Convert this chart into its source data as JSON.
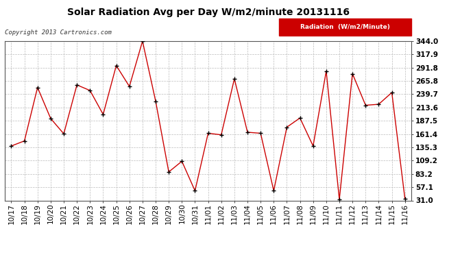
{
  "title": "Solar Radiation Avg per Day W/m2/minute 20131116",
  "copyright": "Copyright 2013 Cartronics.com",
  "legend_label": "Radiation  (W/m2/Minute)",
  "labels": [
    "10/17",
    "10/18",
    "10/19",
    "10/20",
    "10/21",
    "10/22",
    "10/23",
    "10/24",
    "10/25",
    "10/26",
    "10/27",
    "10/28",
    "10/29",
    "10/30",
    "10/31",
    "11/01",
    "11/02",
    "11/03",
    "11/04",
    "11/05",
    "11/06",
    "11/07",
    "11/08",
    "11/09",
    "11/10",
    "11/11",
    "11/12",
    "11/13",
    "11/14",
    "11/15",
    "11/16"
  ],
  "values": [
    138,
    148,
    253,
    192,
    162,
    258,
    247,
    200,
    296,
    255,
    344,
    226,
    87,
    108,
    50,
    163,
    160,
    270,
    165,
    163,
    50,
    175,
    193,
    138,
    285,
    33,
    280,
    218,
    220,
    243,
    34
  ],
  "y_ticks": [
    31.0,
    57.1,
    83.2,
    109.2,
    135.3,
    161.4,
    187.5,
    213.6,
    239.7,
    265.8,
    291.8,
    317.9,
    344.0
  ],
  "ymin": 31.0,
  "ymax": 344.0,
  "line_color": "#cc0000",
  "marker_color": "#000000",
  "bg_color": "#ffffff",
  "plot_bg_color": "#ffffff",
  "grid_color": "#bbbbbb",
  "title_fontsize": 10,
  "tick_fontsize": 7.5,
  "copyright_fontsize": 6.5,
  "legend_bg": "#cc0000",
  "legend_text_color": "#ffffff",
  "legend_fontsize": 6.5
}
